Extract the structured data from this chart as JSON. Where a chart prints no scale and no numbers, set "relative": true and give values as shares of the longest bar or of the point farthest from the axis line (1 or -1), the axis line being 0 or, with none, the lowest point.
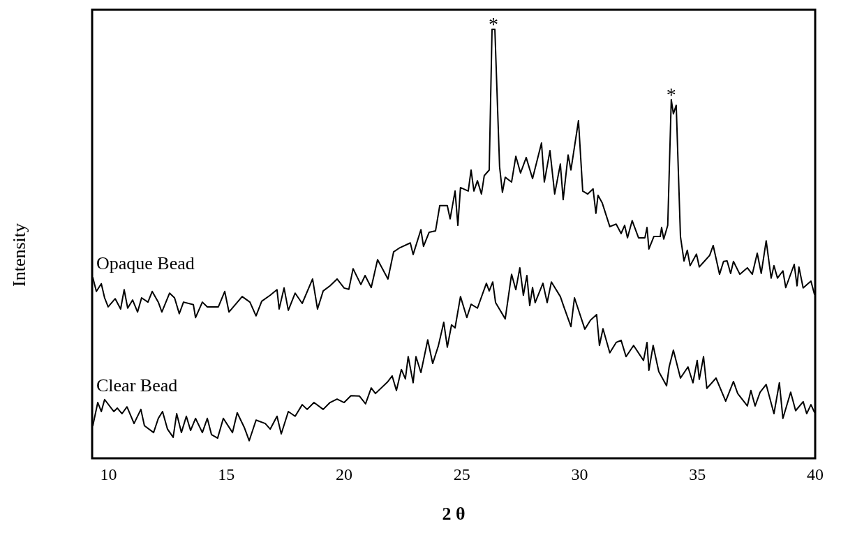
{
  "chart_data": {
    "type": "line",
    "relative": true,
    "xlabel": "2 θ",
    "ylabel": "Intensity",
    "xlim": [
      9.3,
      40
    ],
    "xticks": [
      10,
      15,
      20,
      25,
      30,
      35,
      40
    ],
    "legend": false,
    "grid": false,
    "marker": "none",
    "line_style": "solid",
    "annotations": [
      {
        "text": "*",
        "x": 26.34,
        "y": 1
      },
      {
        "text": "*",
        "x": 33.89,
        "y": 0.836
      }
    ],
    "series": [
      {
        "name": "Opaque Bead",
        "color": "#000000",
        "x": [
          9.33,
          9.48,
          9.69,
          9.83,
          9.98,
          10.28,
          10.51,
          10.66,
          10.81,
          11.02,
          11.23,
          11.4,
          11.67,
          11.85,
          12.11,
          12.26,
          12.59,
          12.8,
          13.0,
          13.18,
          13.6,
          13.69,
          13.98,
          14.19,
          14.66,
          14.93,
          15.11,
          15.67,
          16.0,
          16.26,
          16.5,
          16.86,
          17.15,
          17.24,
          17.45,
          17.63,
          17.92,
          18.22,
          18.66,
          18.87,
          19.11,
          19.4,
          19.7,
          20.0,
          20.2,
          20.38,
          20.71,
          20.89,
          21.15,
          21.42,
          21.86,
          22.1,
          22.37,
          22.81,
          22.93,
          23.26,
          23.37,
          23.61,
          23.88,
          24.06,
          24.38,
          24.5,
          24.71,
          24.83,
          24.94,
          25.27,
          25.39,
          25.51,
          25.66,
          25.83,
          25.95,
          26.16,
          26.28,
          26.4,
          26.6,
          26.72,
          26.84,
          27.11,
          27.29,
          27.49,
          27.73,
          28.0,
          28.38,
          28.5,
          28.74,
          28.94,
          29.18,
          29.3,
          29.51,
          29.63,
          29.95,
          30.13,
          30.34,
          30.57,
          30.69,
          30.78,
          30.96,
          31.28,
          31.55,
          31.76,
          31.91,
          32.03,
          32.23,
          32.5,
          32.77,
          32.86,
          32.94,
          33.15,
          33.42,
          33.48,
          33.57,
          33.74,
          33.89,
          33.98,
          34.1,
          34.28,
          34.43,
          34.57,
          34.69,
          34.96,
          35.08,
          35.29,
          35.52,
          35.67,
          35.94,
          36.11,
          36.26,
          36.41,
          36.53,
          36.8,
          37.12,
          37.33,
          37.54,
          37.71,
          37.92,
          38.13,
          38.25,
          38.4,
          38.63,
          38.75,
          39.11,
          39.23,
          39.31,
          39.49,
          39.82,
          39.97
        ],
        "values": [
          0.421,
          0.389,
          0.407,
          0.374,
          0.353,
          0.372,
          0.348,
          0.393,
          0.35,
          0.369,
          0.341,
          0.374,
          0.364,
          0.389,
          0.364,
          0.341,
          0.385,
          0.374,
          0.337,
          0.364,
          0.358,
          0.328,
          0.364,
          0.353,
          0.353,
          0.389,
          0.341,
          0.377,
          0.364,
          0.332,
          0.366,
          0.38,
          0.393,
          0.348,
          0.397,
          0.345,
          0.385,
          0.361,
          0.418,
          0.348,
          0.39,
          0.402,
          0.418,
          0.397,
          0.394,
          0.442,
          0.405,
          0.426,
          0.398,
          0.463,
          0.418,
          0.481,
          0.491,
          0.502,
          0.475,
          0.533,
          0.494,
          0.527,
          0.53,
          0.589,
          0.589,
          0.558,
          0.623,
          0.543,
          0.631,
          0.623,
          0.672,
          0.623,
          0.647,
          0.616,
          0.659,
          0.672,
          1.0,
          1.0,
          0.68,
          0.62,
          0.655,
          0.644,
          0.704,
          0.665,
          0.701,
          0.652,
          0.735,
          0.644,
          0.717,
          0.616,
          0.686,
          0.603,
          0.707,
          0.672,
          0.787,
          0.623,
          0.616,
          0.628,
          0.571,
          0.613,
          0.595,
          0.54,
          0.546,
          0.524,
          0.543,
          0.514,
          0.554,
          0.514,
          0.514,
          0.538,
          0.488,
          0.517,
          0.517,
          0.538,
          0.511,
          0.543,
          0.836,
          0.803,
          0.823,
          0.517,
          0.46,
          0.485,
          0.449,
          0.476,
          0.446,
          0.459,
          0.473,
          0.496,
          0.429,
          0.459,
          0.46,
          0.431,
          0.459,
          0.429,
          0.444,
          0.429,
          0.478,
          0.431,
          0.507,
          0.42,
          0.449,
          0.42,
          0.437,
          0.398,
          0.452,
          0.402,
          0.446,
          0.397,
          0.413,
          0.382
        ]
      },
      {
        "name": "Clear Bead",
        "color": "#000000",
        "x": [
          9.33,
          9.54,
          9.69,
          9.83,
          10.22,
          10.37,
          10.57,
          10.78,
          11.08,
          11.37,
          11.52,
          11.91,
          12.11,
          12.29,
          12.5,
          12.74,
          12.89,
          13.09,
          13.3,
          13.48,
          13.69,
          13.98,
          14.19,
          14.37,
          14.63,
          14.87,
          15.26,
          15.46,
          15.76,
          15.97,
          16.26,
          16.65,
          16.86,
          17.15,
          17.33,
          17.63,
          17.92,
          18.22,
          18.43,
          18.72,
          19.11,
          19.4,
          19.7,
          20.0,
          20.29,
          20.65,
          20.91,
          21.15,
          21.33,
          21.86,
          22.04,
          22.22,
          22.43,
          22.6,
          22.72,
          22.93,
          23.05,
          23.26,
          23.55,
          23.76,
          24.0,
          24.23,
          24.38,
          24.56,
          24.71,
          24.94,
          25.21,
          25.39,
          25.66,
          26.04,
          26.16,
          26.31,
          26.43,
          26.84,
          27.11,
          27.29,
          27.46,
          27.61,
          27.76,
          27.88,
          28.0,
          28.11,
          28.44,
          28.62,
          28.8,
          29.18,
          29.33,
          29.63,
          29.78,
          30.22,
          30.46,
          30.72,
          30.84,
          30.99,
          31.28,
          31.55,
          31.76,
          31.97,
          32.29,
          32.71,
          32.86,
          32.94,
          33.12,
          33.36,
          33.69,
          33.8,
          33.98,
          34.28,
          34.6,
          34.81,
          34.99,
          35.08,
          35.26,
          35.4,
          35.79,
          36.2,
          36.53,
          36.71,
          37.12,
          37.27,
          37.45,
          37.66,
          37.92,
          38.25,
          38.48,
          38.63,
          38.96,
          39.17,
          39.49,
          39.64,
          39.82,
          39.97
        ],
        "values": [
          0.076,
          0.13,
          0.109,
          0.137,
          0.109,
          0.117,
          0.104,
          0.12,
          0.081,
          0.114,
          0.076,
          0.06,
          0.093,
          0.109,
          0.068,
          0.049,
          0.104,
          0.06,
          0.098,
          0.065,
          0.093,
          0.06,
          0.093,
          0.055,
          0.047,
          0.093,
          0.06,
          0.106,
          0.072,
          0.041,
          0.089,
          0.081,
          0.068,
          0.098,
          0.057,
          0.109,
          0.098,
          0.125,
          0.114,
          0.13,
          0.114,
          0.13,
          0.138,
          0.13,
          0.146,
          0.145,
          0.127,
          0.164,
          0.151,
          0.179,
          0.192,
          0.158,
          0.207,
          0.185,
          0.237,
          0.176,
          0.237,
          0.2,
          0.276,
          0.221,
          0.262,
          0.317,
          0.259,
          0.311,
          0.304,
          0.377,
          0.328,
          0.359,
          0.35,
          0.408,
          0.39,
          0.411,
          0.363,
          0.325,
          0.429,
          0.393,
          0.444,
          0.38,
          0.426,
          0.356,
          0.398,
          0.363,
          0.408,
          0.363,
          0.411,
          0.377,
          0.353,
          0.307,
          0.374,
          0.301,
          0.322,
          0.335,
          0.263,
          0.302,
          0.246,
          0.27,
          0.275,
          0.237,
          0.263,
          0.228,
          0.27,
          0.205,
          0.263,
          0.202,
          0.169,
          0.213,
          0.252,
          0.187,
          0.213,
          0.176,
          0.228,
          0.184,
          0.237,
          0.163,
          0.187,
          0.133,
          0.179,
          0.151,
          0.122,
          0.158,
          0.122,
          0.154,
          0.172,
          0.104,
          0.176,
          0.093,
          0.154,
          0.111,
          0.132,
          0.104,
          0.125,
          0.107
        ]
      }
    ]
  }
}
